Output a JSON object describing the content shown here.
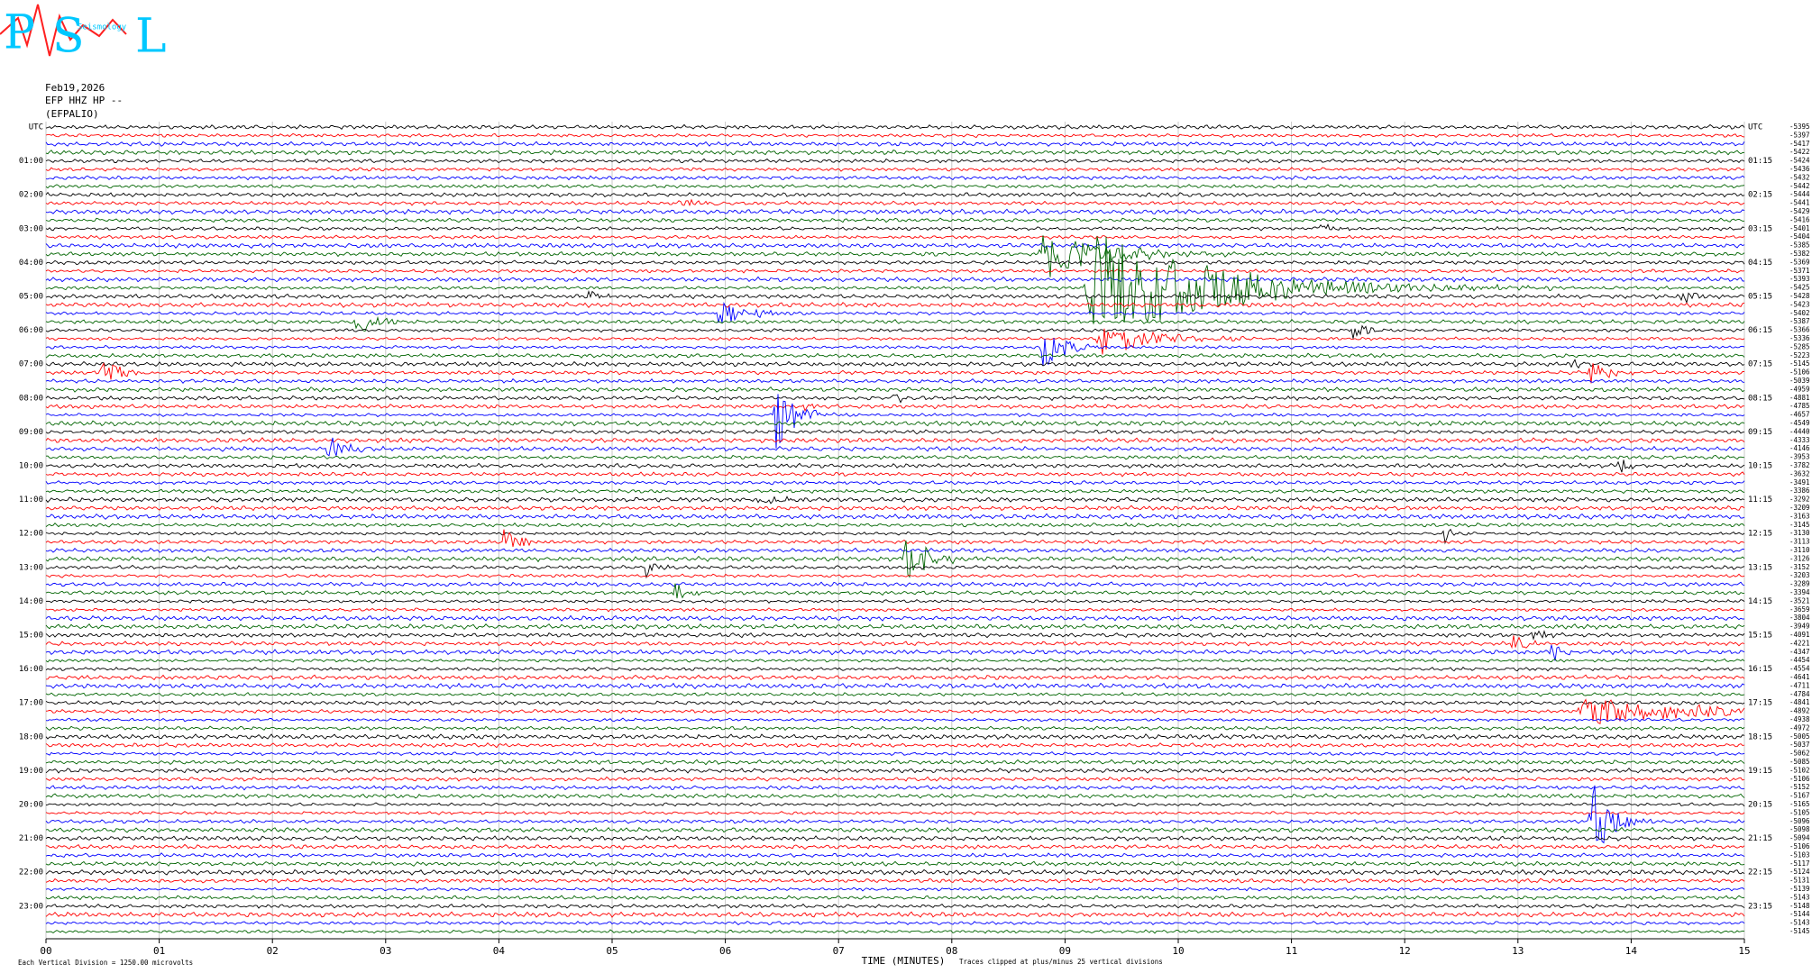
{
  "chart_data": {
    "type": "helicorder",
    "logo": {
      "letters": [
        "P",
        "S",
        "L"
      ],
      "subtext": "Seismology"
    },
    "header": [
      "Feb19,2026",
      "EFP HHZ HP --",
      "(EFPALIO)"
    ],
    "left_labels": [
      "UTC",
      "01:00",
      "02:00",
      "03:00",
      "04:00",
      "05:00",
      "06:00",
      "07:00",
      "08:00",
      "09:00",
      "10:00",
      "11:00",
      "12:00",
      "13:00",
      "14:00",
      "15:00",
      "16:00",
      "17:00",
      "18:00",
      "19:00",
      "20:00",
      "21:00",
      "22:00",
      "23:00"
    ],
    "right_labels": [
      "UTC",
      "01:15",
      "02:15",
      "03:15",
      "04:15",
      "05:15",
      "06:15",
      "07:15",
      "08:15",
      "09:15",
      "10:15",
      "11:15",
      "12:15",
      "13:15",
      "14:15",
      "15:15",
      "16:15",
      "17:15",
      "18:15",
      "19:15",
      "20:15",
      "21:15",
      "22:15",
      "23:15"
    ],
    "trace_offsets": [
      -5395,
      -5397,
      -5417,
      -5422,
      -5424,
      -5436,
      -5432,
      -5442,
      -5444,
      -5441,
      -5429,
      -5416,
      -5401,
      -5404,
      -5385,
      -5382,
      -5369,
      -5371,
      -5393,
      -5425,
      -5428,
      -5423,
      -5402,
      -5387,
      -5366,
      -5336,
      -5285,
      -5223,
      -5145,
      -5106,
      -5039,
      -4959,
      -4881,
      -4785,
      -4657,
      -4549,
      -4440,
      -4333,
      -4146,
      -3953,
      -3782,
      -3632,
      -3491,
      -3386,
      -3292,
      -3209,
      -3163,
      -3145,
      -3130,
      -3113,
      -3110,
      -3126,
      -3152,
      -3203,
      -3289,
      -3394,
      -3521,
      -3659,
      -3804,
      -3949,
      -4091,
      -4221,
      -4347,
      -4454,
      -4554,
      -4641,
      -4711,
      -4784,
      -4841,
      -4892,
      -4938,
      -4972,
      -5005,
      -5037,
      -5062,
      -5085,
      -5102,
      -5106,
      -5152,
      -5167,
      -5165,
      -5105,
      -5096,
      -5098,
      -5094,
      -5106,
      -5103,
      -5117,
      -5124,
      -5131,
      -5139,
      -5143,
      -5148,
      -5144,
      -5143,
      -5145
    ],
    "trace_colors": [
      "#000000",
      "#ff0000",
      "#0000ff",
      "#006400"
    ],
    "xlim": [
      0,
      15
    ],
    "xticks": [
      {
        "value": 0,
        "label": "00"
      },
      {
        "value": 1,
        "label": "01"
      },
      {
        "value": 2,
        "label": "02"
      },
      {
        "value": 3,
        "label": "03"
      },
      {
        "value": 4,
        "label": "04"
      },
      {
        "value": 5,
        "label": "05"
      },
      {
        "value": 6,
        "label": "06"
      },
      {
        "value": 7,
        "label": "07"
      },
      {
        "value": 8,
        "label": "08"
      },
      {
        "value": 9,
        "label": "09"
      },
      {
        "value": 10,
        "label": "10"
      },
      {
        "value": 11,
        "label": "11"
      },
      {
        "value": 12,
        "label": "12"
      },
      {
        "value": 13,
        "label": "13"
      },
      {
        "value": 14,
        "label": "14"
      },
      {
        "value": 15,
        "label": "15"
      }
    ],
    "xlabel": "TIME (MINUTES)",
    "clip_note": "Traces clipped at plus/minus 25 vertical divisions",
    "scale_note": "Each Vertical Division = 1250.00 microvolts",
    "grid": true
  }
}
